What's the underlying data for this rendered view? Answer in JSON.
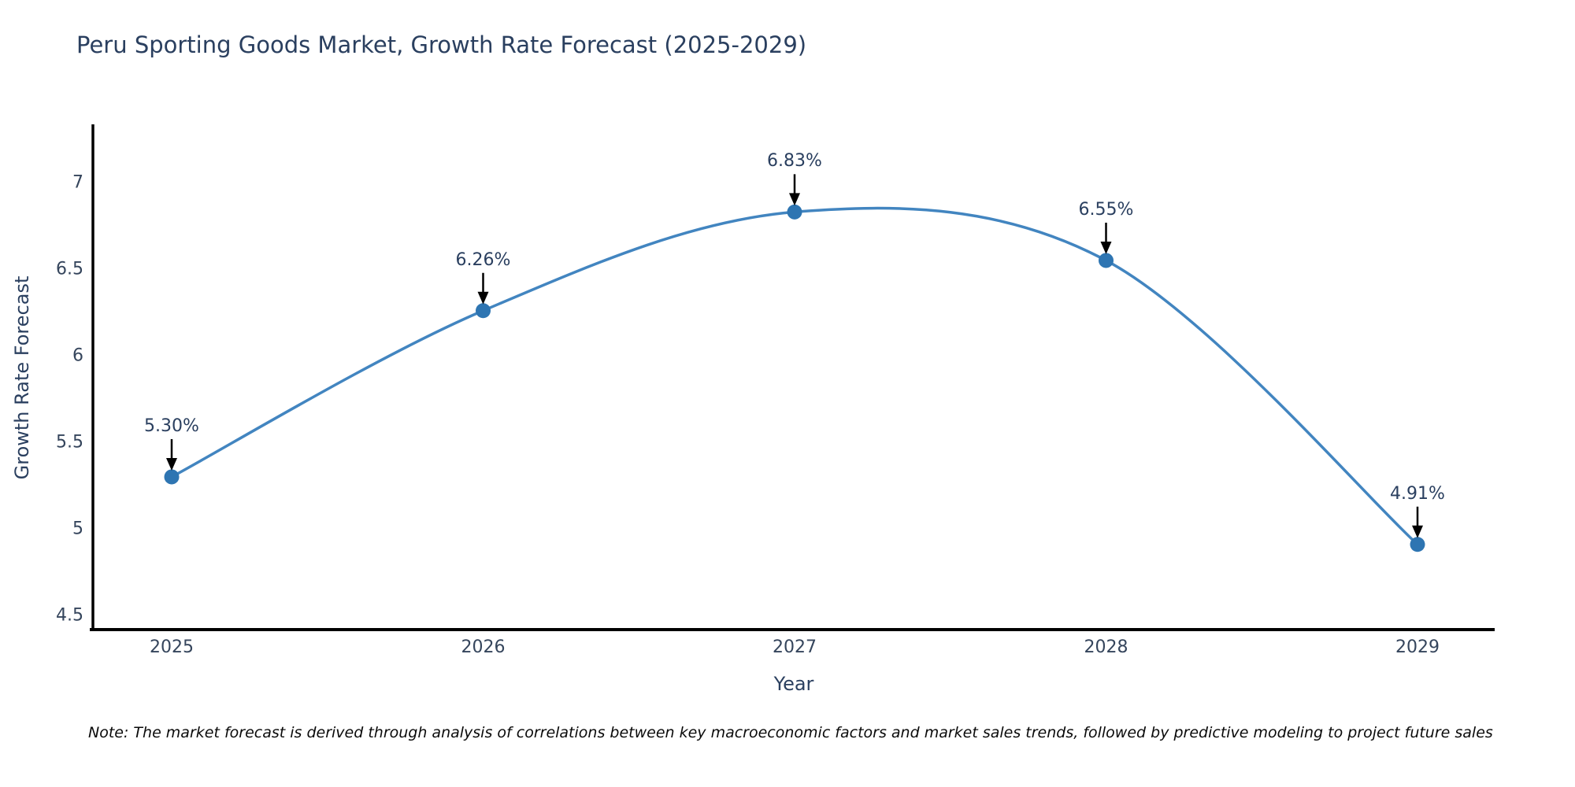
{
  "note": "Note: The market forecast is derived through analysis of correlations between key macroeconomic factors and market sales trends, followed by predictive modeling to project future sales",
  "chart_data": {
    "type": "line",
    "title": "Peru Sporting Goods Market, Growth Rate Forecast (2025-2029)",
    "xlabel": "Year",
    "ylabel": "Growth Rate Forecast",
    "categories": [
      "2025",
      "2026",
      "2027",
      "2028",
      "2029"
    ],
    "series": [
      {
        "name": "Growth Rate Forecast",
        "values": [
          5.3,
          6.26,
          6.83,
          6.55,
          4.91
        ]
      }
    ],
    "point_labels": [
      "5.30%",
      "6.26%",
      "6.83%",
      "6.55%",
      "4.91%"
    ],
    "y_ticks": [
      7,
      6.5,
      6,
      5.5,
      5,
      4.5
    ],
    "ylim": [
      4.418,
      7.327
    ],
    "line_shape": "spline",
    "grid": false,
    "legend_position": "none",
    "annotations_have_arrows": true,
    "colors": {
      "line": "#4285c0",
      "marker": "#2e75b2",
      "axis": "#000000",
      "arrow": "#000000",
      "title_text": "#2a3f5f",
      "tick_text": "#35455c"
    }
  }
}
